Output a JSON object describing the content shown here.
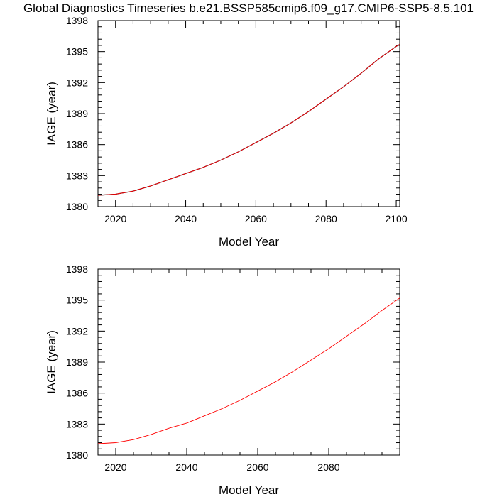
{
  "title": "Global Diagnostics Timeseries b.e21.BSSP585cmip6.f09_g17.CMIP6-SSP5-8.5.101",
  "colors": {
    "black_line": "#000000",
    "red_line": "#ff0000",
    "blue_line": "#3333cc"
  },
  "chart_data": [
    {
      "type": "line",
      "xlabel": "Model Year",
      "ylabel": "IAGE (year)",
      "xlim": [
        2015,
        2101
      ],
      "ylim": [
        1380,
        1398
      ],
      "x_ticks": [
        2020,
        2040,
        2060,
        2080,
        2100
      ],
      "y_ticks": [
        1380,
        1383,
        1386,
        1389,
        1392,
        1395,
        1398
      ],
      "series": [
        {
          "color": "black+blue",
          "x": [
            2015,
            2020,
            2025,
            2030,
            2035,
            2040,
            2045,
            2050,
            2055,
            2060,
            2065,
            2070,
            2075,
            2080,
            2085,
            2090,
            2095,
            2100,
            2101
          ],
          "y": [
            1381.1,
            1381.2,
            1381.5,
            1382.0,
            1382.6,
            1383.2,
            1383.8,
            1384.5,
            1385.3,
            1386.2,
            1387.1,
            1388.1,
            1389.2,
            1390.4,
            1391.6,
            1392.9,
            1394.3,
            1395.5,
            1395.7
          ]
        },
        {
          "color": "red",
          "x": [
            2015,
            2020,
            2025,
            2030,
            2035,
            2040,
            2045,
            2050,
            2055,
            2060,
            2065,
            2070,
            2075,
            2080,
            2085,
            2090,
            2095,
            2100,
            2101
          ],
          "y": [
            1381.1,
            1381.2,
            1381.5,
            1382.0,
            1382.6,
            1383.2,
            1383.8,
            1384.5,
            1385.3,
            1386.2,
            1387.1,
            1388.1,
            1389.2,
            1390.4,
            1391.6,
            1392.9,
            1394.3,
            1395.5,
            1395.7
          ]
        }
      ]
    },
    {
      "type": "line",
      "xlabel": "Model Year",
      "ylabel": "IAGE (year)",
      "xlim": [
        2015,
        2100
      ],
      "ylim": [
        1380,
        1398
      ],
      "x_ticks": [
        2020,
        2040,
        2060,
        2080
      ],
      "y_ticks": [
        1380,
        1383,
        1386,
        1389,
        1392,
        1395,
        1398
      ],
      "series": [
        {
          "color": "red",
          "x": [
            2015,
            2020,
            2025,
            2030,
            2035,
            2040,
            2045,
            2050,
            2055,
            2060,
            2065,
            2070,
            2075,
            2080,
            2085,
            2090,
            2095,
            2100
          ],
          "y": [
            1381.1,
            1381.2,
            1381.5,
            1382.0,
            1382.6,
            1383.1,
            1383.8,
            1384.5,
            1385.3,
            1386.2,
            1387.1,
            1388.1,
            1389.2,
            1390.3,
            1391.5,
            1392.7,
            1394.0,
            1395.2
          ]
        }
      ]
    }
  ]
}
